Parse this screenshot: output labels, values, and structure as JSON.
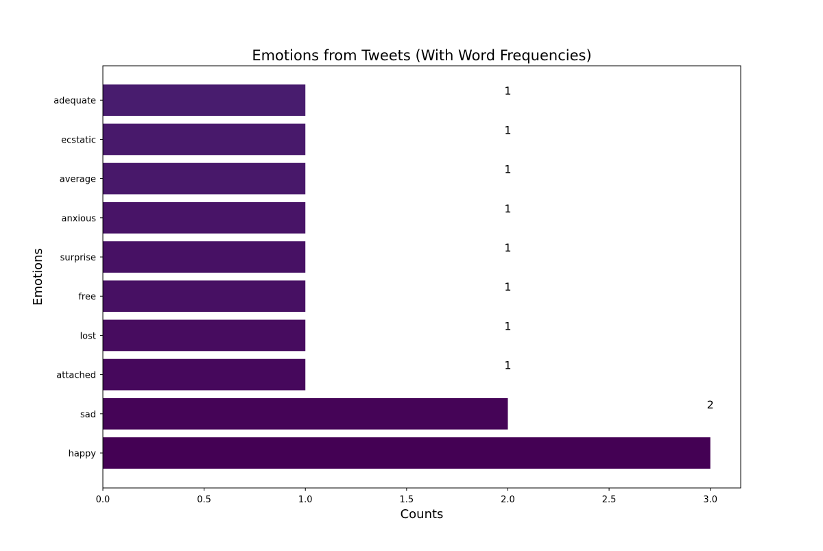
{
  "chart_data": {
    "type": "bar",
    "orientation": "horizontal",
    "title": "Emotions from Tweets (With Word Frequencies)",
    "xlabel": "Counts",
    "ylabel": "Emotions",
    "categories": [
      "happy",
      "sad",
      "attached",
      "lost",
      "free",
      "surprise",
      "anxious",
      "average",
      "ecstatic",
      "adequate"
    ],
    "values": [
      3,
      2,
      1,
      1,
      1,
      1,
      1,
      1,
      1,
      1
    ],
    "data_labels": [
      "",
      "2",
      "1",
      "1",
      "1",
      "1",
      "1",
      "1",
      "1",
      "1"
    ],
    "xlim": [
      0,
      3.15
    ],
    "xticks": [
      "0.0",
      "0.5",
      "1.0",
      "1.5",
      "2.0",
      "2.5",
      "3.0"
    ],
    "bar_colors": [
      "#440154",
      "#450457",
      "#46085c",
      "#470c5f",
      "#471063",
      "#471164",
      "#481467",
      "#48186a",
      "#48196b",
      "#481c6e"
    ],
    "grid": false,
    "legend": "none"
  }
}
